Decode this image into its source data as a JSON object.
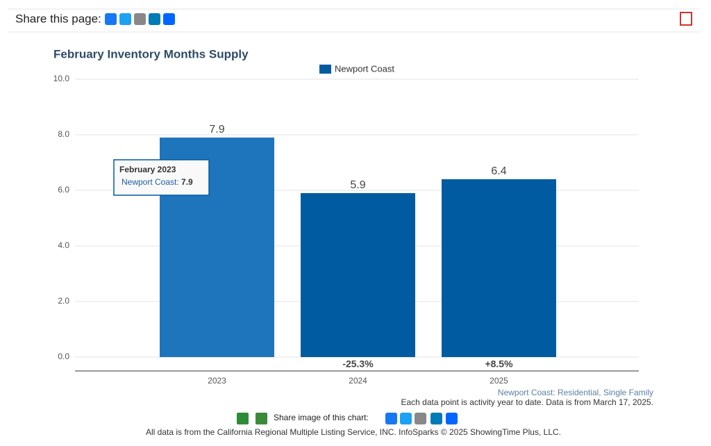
{
  "header": {
    "share_label": "Share this page:"
  },
  "chart_data": {
    "type": "bar",
    "title": "February Inventory Months Supply",
    "categories": [
      "2023",
      "2024",
      "2025"
    ],
    "series": [
      {
        "name": "Newport Coast",
        "color": "#005ba1",
        "values": [
          7.9,
          5.9,
          6.4
        ]
      }
    ],
    "change_labels": [
      null,
      "-25.3%",
      "+8.5%"
    ],
    "highlight": {
      "index": 0,
      "color": "#1f75bb"
    },
    "tooltip": {
      "index": 0,
      "title": "February 2023"
    },
    "ylim": [
      0,
      10
    ],
    "yticks": [
      {
        "value": 0,
        "label": "0.0"
      },
      {
        "value": 2,
        "label": "2.0"
      },
      {
        "value": 4,
        "label": "4.0"
      },
      {
        "value": 6,
        "label": "6.0"
      },
      {
        "value": 8,
        "label": "8.0"
      },
      {
        "value": 10,
        "label": "10.0"
      }
    ],
    "grid": true,
    "legend": "top"
  },
  "notes": {
    "source_area": "Newport Coast: Residential, Single Family",
    "data_note": "Each data point is activity year to date. Data is from March 17, 2025.",
    "share_image": "Share image of this chart:"
  },
  "footer": {
    "text": "All data is from the California Regional Multiple Listing Service, INC. InfoSparks © 2025 ShowingTime Plus, LLC."
  }
}
